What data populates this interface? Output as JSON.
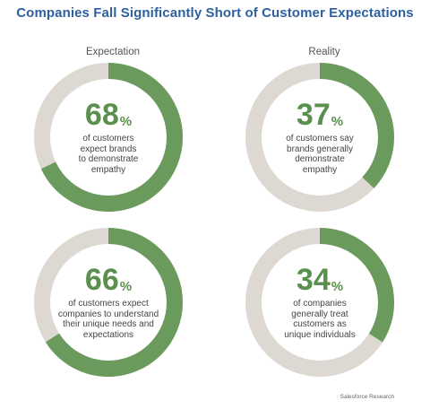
{
  "title": "Companies Fall Significantly Short of Customer Expectations",
  "columns": {
    "left": "Expectation",
    "right": "Reality"
  },
  "colors": {
    "fill": "#6a9a5c",
    "track": "#ddd8d2",
    "title": "#2e5f9e",
    "number": "#5a8f4e"
  },
  "chart_data": {
    "type": "pie",
    "charts": [
      {
        "value": 68,
        "label": "of customers expect brands to demonstrate empathy",
        "lines": [
          "of customers",
          "expect brands",
          "to demonstrate",
          "empathy"
        ]
      },
      {
        "value": 37,
        "label": "of customers say brands generally demonstrate empathy",
        "lines": [
          "of customers say",
          "brands generally",
          "demonstrate",
          "empathy"
        ]
      },
      {
        "value": 66,
        "label": "of customers expect companies to understand their unique needs and expectations",
        "lines": [
          "of customers expect",
          "companies to understand",
          "their unique needs and",
          "expectations"
        ]
      },
      {
        "value": 34,
        "label": "of companies generally treat customers as unique individuals",
        "lines": [
          "of companies",
          "generally treat",
          "customers as",
          "unique individuals"
        ]
      }
    ],
    "unit": "%"
  },
  "source": "Salesforce Research"
}
